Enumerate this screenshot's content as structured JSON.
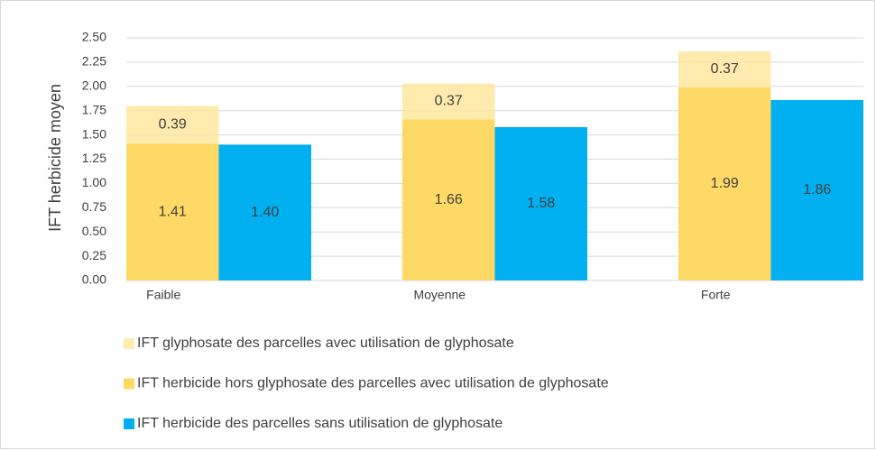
{
  "chart_data": {
    "type": "bar",
    "stacked": true,
    "y_label": "IFT herbicide moyen",
    "categories": [
      "Faible",
      "Moyenne",
      "Forte"
    ],
    "series": [
      {
        "name": "IFT glyphosate des parcelles avec utilisation de glyphosate",
        "color": "#FFE699",
        "stack": "a",
        "values": [
          0.39,
          0.37,
          0.37
        ]
      },
      {
        "name": "IFT herbicide hors glyphosate des parcelles avec utilisation de glyphosate",
        "color": "#FFD966",
        "stack": "a",
        "values": [
          1.41,
          1.66,
          1.99
        ]
      },
      {
        "name": "IFT herbicide des parcelles sans utilisation de glyphosate",
        "color": "#00B0F0",
        "stack": "b",
        "values": [
          1.4,
          1.58,
          1.86
        ],
        "value_labels": [
          "1.40",
          "1.58",
          "1.86"
        ]
      }
    ],
    "ylim": [
      0,
      2.5
    ],
    "yticks": [
      {
        "value": 0,
        "label": "0.00"
      },
      {
        "value": 0.25,
        "label": "0.25"
      },
      {
        "value": 0.5,
        "label": "0.50"
      },
      {
        "value": 0.75,
        "label": "0.75"
      },
      {
        "value": 1,
        "label": "1.00"
      },
      {
        "value": 1.25,
        "label": "1.25"
      },
      {
        "value": 1.5,
        "label": "1.50"
      },
      {
        "value": 1.75,
        "label": "1.75"
      },
      {
        "value": 2,
        "label": "2.00"
      },
      {
        "value": 2.25,
        "label": "2.25"
      },
      {
        "value": 2.5,
        "label": "2.50"
      }
    ],
    "grid": true,
    "legend": "bottom"
  }
}
